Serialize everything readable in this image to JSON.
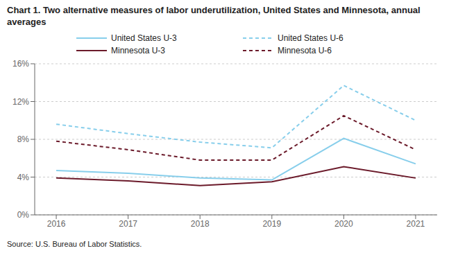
{
  "chart_data": {
    "type": "line",
    "title": "Chart 1. Two alternative measures of labor underutilization, United States and Minnesota, annual averages",
    "annotations": [
      "Source: U.S. Bureau of Labor Statistics."
    ],
    "x": [
      2016,
      2017,
      2018,
      2019,
      2020,
      2021
    ],
    "series": [
      {
        "name": "United States U-3",
        "color": "#87CEEB",
        "line_style": "solid",
        "values": [
          4.7,
          4.4,
          3.9,
          3.7,
          8.1,
          5.4
        ]
      },
      {
        "name": "United States U-6",
        "color": "#87CEEB",
        "line_style": "dashed",
        "values": [
          9.6,
          8.6,
          7.7,
          7.1,
          13.7,
          10.0
        ]
      },
      {
        "name": "Minnesota U-3",
        "color": "#6B1A2A",
        "line_style": "solid",
        "values": [
          3.9,
          3.6,
          3.1,
          3.5,
          5.1,
          3.9
        ]
      },
      {
        "name": "Minnesota U-6",
        "color": "#6B1A2A",
        "line_style": "dashed",
        "values": [
          7.8,
          6.9,
          5.8,
          5.8,
          10.5,
          6.9
        ]
      }
    ],
    "xlim": [
      2015.7,
      2021.3
    ],
    "xticks": [
      2016,
      2017,
      2018,
      2019,
      2020,
      2021
    ],
    "ylim": [
      0,
      16
    ],
    "yticks": [
      {
        "value": 0,
        "label": "0%"
      },
      {
        "value": 4,
        "label": "4%"
      },
      {
        "value": 8,
        "label": "8%"
      },
      {
        "value": 12,
        "label": "12%"
      },
      {
        "value": 16,
        "label": "16%"
      }
    ],
    "grid": true,
    "legend": "top"
  }
}
